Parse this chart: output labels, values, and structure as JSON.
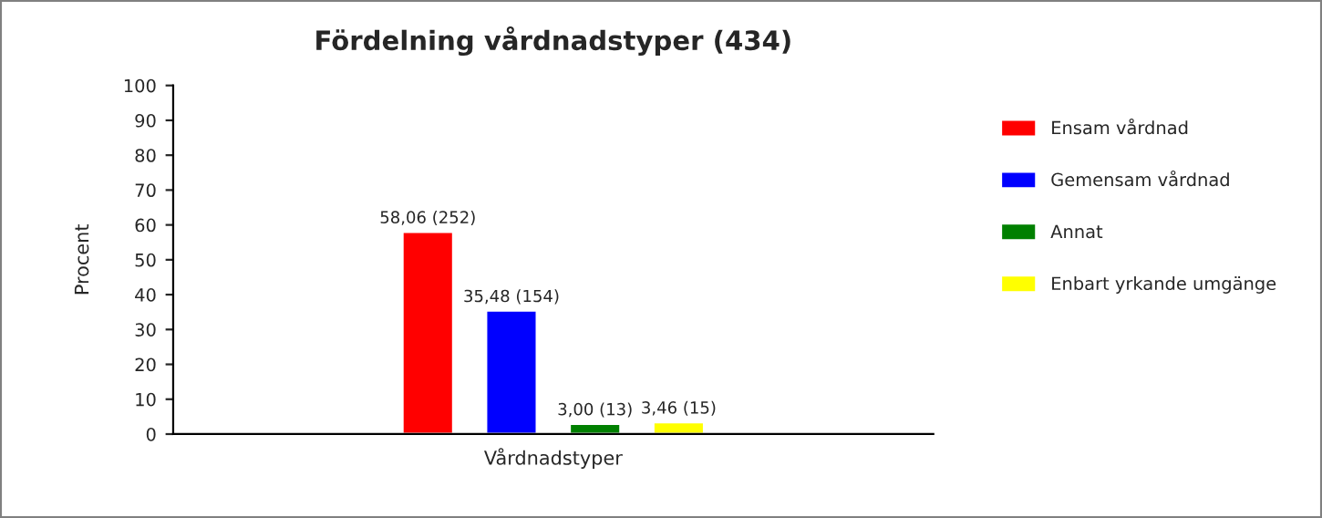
{
  "chart_data": {
    "type": "bar",
    "title": "Fördelning vårdnadstyper (434)",
    "xlabel": "Vårdnadstyper",
    "ylabel": "Procent",
    "categories": [
      null
    ],
    "series": [
      {
        "name": "Ensam vårdnad",
        "color": "#ff0000",
        "values": [
          58.06
        ],
        "value_labels": [
          "58,06 (252)"
        ]
      },
      {
        "name": "Gemensam vårdnad",
        "color": "#0000ff",
        "values": [
          35.48
        ],
        "value_labels": [
          "35,48 (154)"
        ]
      },
      {
        "name": "Annat",
        "color": "#008000",
        "values": [
          3.0
        ],
        "value_labels": [
          "3,00 (13)"
        ]
      },
      {
        "name": "Enbart yrkande umgänge",
        "color": "#ffff00",
        "values": [
          3.46
        ],
        "value_labels": [
          "3,46 (15)"
        ]
      }
    ],
    "ylim": [
      0,
      100
    ],
    "yticks": [
      0,
      10,
      20,
      30,
      40,
      50,
      60,
      70,
      80,
      90,
      100
    ],
    "legend": "right",
    "grid": false
  }
}
